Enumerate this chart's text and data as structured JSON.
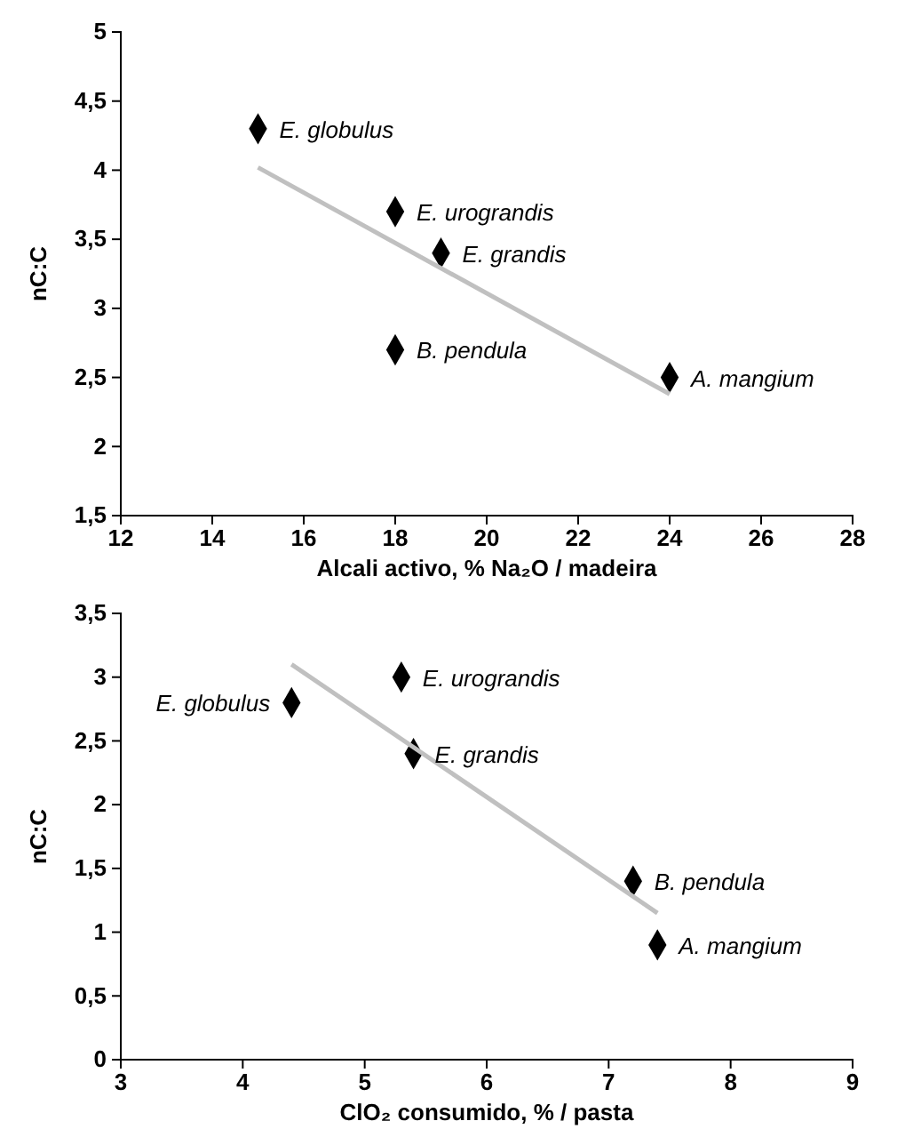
{
  "chart_data": [
    {
      "type": "scatter",
      "xlabel": "Alcali activo, % Na₂O / madeira",
      "ylabel": "nC:C",
      "xlim": [
        12,
        28
      ],
      "xticks": [
        12,
        14,
        16,
        18,
        20,
        22,
        24,
        26,
        28
      ],
      "ylim": [
        1.5,
        5
      ],
      "yticks": [
        {
          "value": 1.5,
          "label": "1,5"
        },
        2,
        {
          "value": 2.5,
          "label": "2,5"
        },
        3,
        {
          "value": 3.5,
          "label": "3,5"
        },
        4,
        {
          "value": 4.5,
          "label": "4,5"
        },
        5
      ],
      "grid": false,
      "series": [
        {
          "marker": "diamond",
          "color": "#000000",
          "x": [
            15,
            18,
            19,
            18,
            24
          ],
          "values": [
            4.3,
            3.7,
            3.4,
            2.7,
            2.5
          ]
        },
        {
          "type": "line",
          "color": "#c0c0c0",
          "x": [
            15,
            24
          ],
          "values": [
            4.02,
            2.38
          ]
        }
      ],
      "annotations": [
        {
          "text": "E. globulus",
          "x": 15,
          "y": 4.3
        },
        {
          "text": "E. urograndis",
          "x": 18,
          "y": 3.7
        },
        {
          "text": "E. grandis",
          "x": 19,
          "y": 3.4
        },
        {
          "text": "B. pendula",
          "x": 18,
          "y": 2.7
        },
        {
          "text": "A. mangium",
          "x": 24,
          "y": 2.5
        }
      ]
    },
    {
      "type": "scatter",
      "xlabel": "ClO₂ consumido, % / pasta",
      "ylabel": "nC:C",
      "xlim": [
        3,
        9
      ],
      "xticks": [
        3,
        4,
        5,
        6,
        7,
        8,
        9
      ],
      "ylim": [
        0,
        3.5
      ],
      "yticks": [
        0,
        {
          "value": 0.5,
          "label": "0,5"
        },
        1,
        {
          "value": 1.5,
          "label": "1,5"
        },
        2,
        {
          "value": 2.5,
          "label": "2,5"
        },
        3,
        {
          "value": 3.5,
          "label": "3,5"
        }
      ],
      "grid": false,
      "series": [
        {
          "marker": "diamond",
          "color": "#000000",
          "x": [
            4.4,
            5.3,
            5.4,
            7.2,
            7.4
          ],
          "values": [
            2.8,
            3.0,
            2.4,
            1.4,
            0.9
          ]
        },
        {
          "type": "line",
          "color": "#c0c0c0",
          "x": [
            4.4,
            7.4
          ],
          "values": [
            3.1,
            1.15
          ]
        }
      ],
      "annotations": [
        {
          "text": "E. globulus",
          "x": 4.4,
          "y": 2.8
        },
        {
          "text": "E. urograndis",
          "x": 5.3,
          "y": 3.0
        },
        {
          "text": "E. grandis",
          "x": 5.4,
          "y": 2.4
        },
        {
          "text": "B. pendula",
          "x": 7.2,
          "y": 1.4
        },
        {
          "text": "A. mangium",
          "x": 7.4,
          "y": 0.9
        }
      ]
    }
  ]
}
